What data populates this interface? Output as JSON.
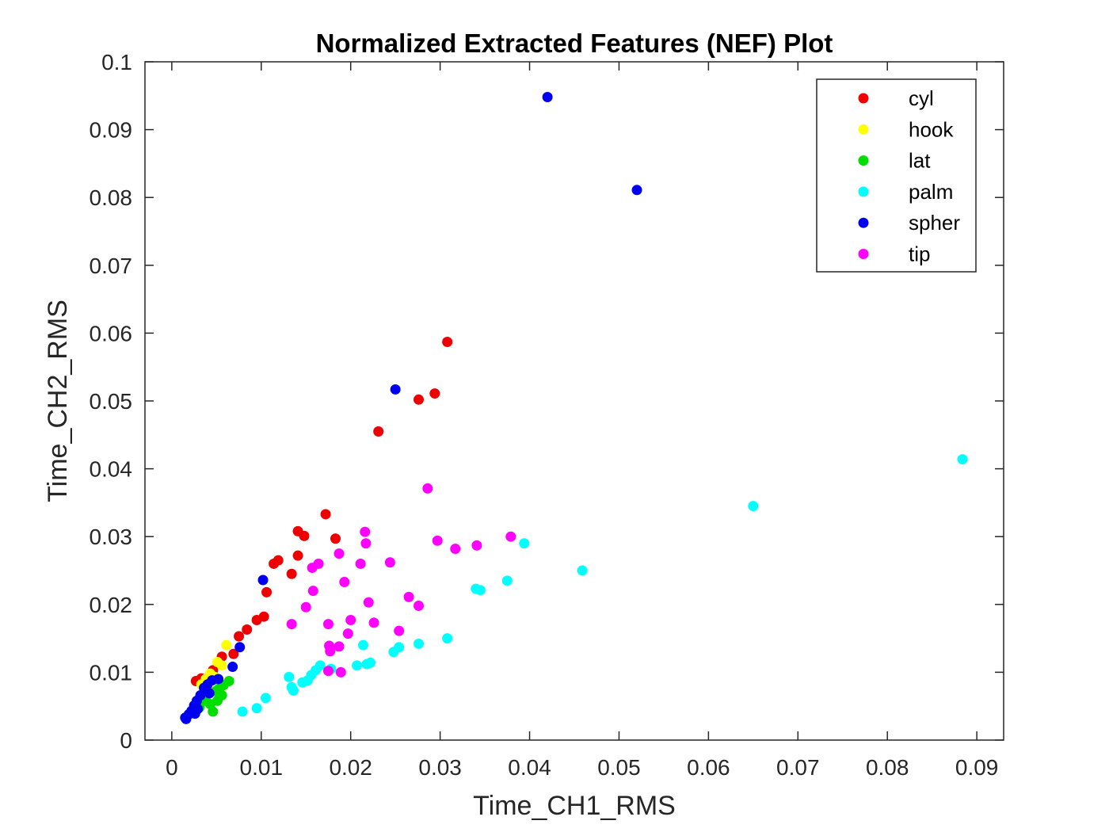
{
  "chart_data": {
    "type": "scatter",
    "title": "Normalized Extracted Features (NEF) Plot",
    "xlabel": "Time_CH1_RMS",
    "ylabel": "Time_CH2_RMS",
    "xlim": [
      -0.003,
      0.093
    ],
    "ylim": [
      0,
      0.1
    ],
    "xticks": [
      0,
      0.01,
      0.02,
      0.03,
      0.04,
      0.05,
      0.06,
      0.07,
      0.08,
      0.09
    ],
    "xtick_labels": [
      "0",
      "0.01",
      "0.02",
      "0.03",
      "0.04",
      "0.05",
      "0.06",
      "0.07",
      "0.08",
      "0.09"
    ],
    "yticks": [
      0,
      0.01,
      0.02,
      0.03,
      0.04,
      0.05,
      0.06,
      0.07,
      0.08,
      0.09,
      0.1
    ],
    "ytick_labels": [
      "0",
      "0.01",
      "0.02",
      "0.03",
      "0.04",
      "0.05",
      "0.06",
      "0.07",
      "0.08",
      "0.09",
      "0.1"
    ],
    "grid": false,
    "legend_position": "top-right",
    "series": [
      {
        "name": "cyl",
        "color": "#ee0000",
        "points": [
          [
            0.0308,
            0.0587
          ],
          [
            0.0294,
            0.0511
          ],
          [
            0.0276,
            0.0502
          ],
          [
            0.0231,
            0.0455
          ],
          [
            0.0172,
            0.0333
          ],
          [
            0.0141,
            0.0308
          ],
          [
            0.0148,
            0.0301
          ],
          [
            0.0183,
            0.0297
          ],
          [
            0.0119,
            0.0265
          ],
          [
            0.0114,
            0.026
          ],
          [
            0.0141,
            0.0272
          ],
          [
            0.0134,
            0.0245
          ],
          [
            0.0106,
            0.0218
          ],
          [
            0.0103,
            0.0182
          ],
          [
            0.0095,
            0.0177
          ],
          [
            0.0084,
            0.0163
          ],
          [
            0.0075,
            0.0153
          ],
          [
            0.0069,
            0.0127
          ],
          [
            0.0056,
            0.0123
          ],
          [
            0.0027,
            0.0087
          ],
          [
            0.0033,
            0.0091
          ],
          [
            0.0046,
            0.0103
          ],
          [
            0.0053,
            0.0113
          ]
        ]
      },
      {
        "name": "hook",
        "color": "#ffff00",
        "points": [
          [
            0.0061,
            0.014
          ],
          [
            0.0051,
            0.0115
          ],
          [
            0.0056,
            0.011
          ],
          [
            0.0043,
            0.0098
          ],
          [
            0.0048,
            0.0093
          ],
          [
            0.0038,
            0.009
          ],
          [
            0.0033,
            0.0082
          ]
        ]
      },
      {
        "name": "lat",
        "color": "#00dd00",
        "points": [
          [
            0.0064,
            0.0087
          ],
          [
            0.0058,
            0.0081
          ],
          [
            0.0053,
            0.0076
          ],
          [
            0.0049,
            0.0072
          ],
          [
            0.0051,
            0.0058
          ],
          [
            0.0043,
            0.0053
          ],
          [
            0.0046,
            0.0042
          ],
          [
            0.0038,
            0.0058
          ],
          [
            0.0034,
            0.0063
          ],
          [
            0.0041,
            0.0069
          ],
          [
            0.0031,
            0.0048
          ],
          [
            0.0056,
            0.0066
          ]
        ]
      },
      {
        "name": "palm",
        "color": "#00ffff",
        "points": [
          [
            0.0884,
            0.0414
          ],
          [
            0.065,
            0.0345
          ],
          [
            0.0459,
            0.025
          ],
          [
            0.0394,
            0.029
          ],
          [
            0.0375,
            0.0235
          ],
          [
            0.034,
            0.0223
          ],
          [
            0.0345,
            0.0221
          ],
          [
            0.0308,
            0.015
          ],
          [
            0.0276,
            0.0142
          ],
          [
            0.0254,
            0.0137
          ],
          [
            0.0248,
            0.013
          ],
          [
            0.0214,
            0.014
          ],
          [
            0.0222,
            0.0114
          ],
          [
            0.0218,
            0.0112
          ],
          [
            0.0207,
            0.011
          ],
          [
            0.0178,
            0.0105
          ],
          [
            0.0166,
            0.011
          ],
          [
            0.0161,
            0.0103
          ],
          [
            0.0156,
            0.0096
          ],
          [
            0.0146,
            0.0085
          ],
          [
            0.0131,
            0.0093
          ],
          [
            0.0134,
            0.0078
          ],
          [
            0.0136,
            0.0073
          ],
          [
            0.0152,
            0.0088
          ],
          [
            0.0105,
            0.0062
          ],
          [
            0.0095,
            0.0047
          ],
          [
            0.0079,
            0.0042
          ]
        ]
      },
      {
        "name": "spher",
        "color": "#0000ee",
        "points": [
          [
            0.042,
            0.0948
          ],
          [
            0.052,
            0.0811
          ],
          [
            0.025,
            0.0517
          ],
          [
            0.0102,
            0.0236
          ],
          [
            0.0076,
            0.0137
          ],
          [
            0.0068,
            0.0108
          ],
          [
            0.0052,
            0.009
          ],
          [
            0.0045,
            0.0088
          ],
          [
            0.004,
            0.0082
          ],
          [
            0.0036,
            0.0077
          ],
          [
            0.0042,
            0.0069
          ],
          [
            0.0032,
            0.0066
          ],
          [
            0.0028,
            0.0058
          ],
          [
            0.0025,
            0.0051
          ],
          [
            0.0029,
            0.0046
          ],
          [
            0.0022,
            0.0043
          ],
          [
            0.0019,
            0.0038
          ],
          [
            0.0015,
            0.0033
          ],
          [
            0.0016,
            0.0031
          ],
          [
            0.0026,
            0.0039
          ]
        ]
      },
      {
        "name": "tip",
        "color": "#ff00ff",
        "points": [
          [
            0.0286,
            0.0371
          ],
          [
            0.0379,
            0.03
          ],
          [
            0.0341,
            0.0287
          ],
          [
            0.0317,
            0.0282
          ],
          [
            0.0297,
            0.0294
          ],
          [
            0.0216,
            0.0307
          ],
          [
            0.0217,
            0.029
          ],
          [
            0.0187,
            0.0275
          ],
          [
            0.0244,
            0.0262
          ],
          [
            0.0211,
            0.026
          ],
          [
            0.0164,
            0.026
          ],
          [
            0.0157,
            0.0254
          ],
          [
            0.0193,
            0.0233
          ],
          [
            0.0158,
            0.022
          ],
          [
            0.0265,
            0.0211
          ],
          [
            0.0276,
            0.0198
          ],
          [
            0.022,
            0.0203
          ],
          [
            0.015,
            0.0196
          ],
          [
            0.0134,
            0.0171
          ],
          [
            0.0175,
            0.0171
          ],
          [
            0.02,
            0.0177
          ],
          [
            0.0226,
            0.0173
          ],
          [
            0.0197,
            0.0157
          ],
          [
            0.0254,
            0.0161
          ],
          [
            0.0187,
            0.0138
          ],
          [
            0.0176,
            0.0139
          ],
          [
            0.0177,
            0.0131
          ],
          [
            0.0189,
            0.01
          ],
          [
            0.0175,
            0.0102
          ]
        ]
      }
    ]
  }
}
